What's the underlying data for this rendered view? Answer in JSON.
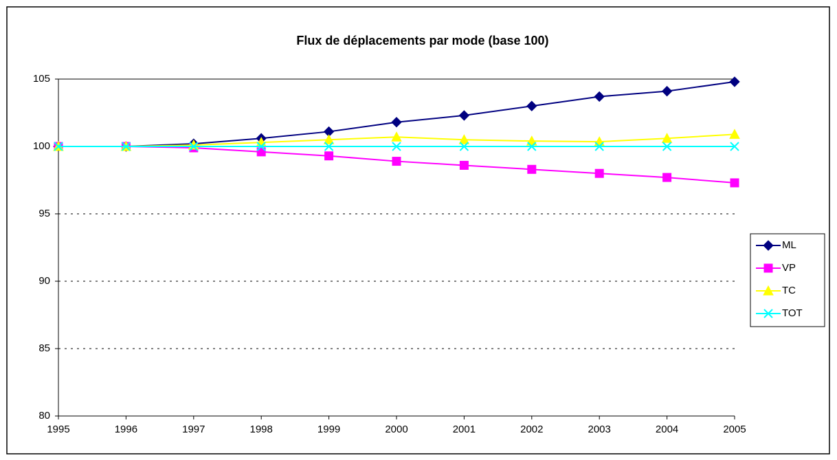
{
  "chart_data": {
    "type": "line",
    "title": "Flux de déplacements par mode (base 100)",
    "categories": [
      "1995",
      "1996",
      "1997",
      "1998",
      "1999",
      "2000",
      "2001",
      "2002",
      "2003",
      "2004",
      "2005"
    ],
    "series": [
      {
        "name": "ML",
        "color": "#000080",
        "marker": "diamond",
        "values": [
          100,
          100,
          100.2,
          100.6,
          101.1,
          101.8,
          102.3,
          103.0,
          103.7,
          104.1,
          104.8
        ]
      },
      {
        "name": "VP",
        "color": "#ff00ff",
        "marker": "square",
        "values": [
          100,
          100,
          99.9,
          99.6,
          99.3,
          98.9,
          98.6,
          98.3,
          98.0,
          97.7,
          97.3
        ]
      },
      {
        "name": "TC",
        "color": "#ffff00",
        "marker": "triangle",
        "values": [
          100,
          100,
          100.1,
          100.3,
          100.5,
          100.7,
          100.5,
          100.4,
          100.35,
          100.6,
          100.9
        ]
      },
      {
        "name": "TOT",
        "color": "#00ffff",
        "marker": "x",
        "values": [
          100,
          100,
          100,
          100,
          100,
          100,
          100,
          100,
          100,
          100,
          100
        ]
      }
    ],
    "ylim": [
      80,
      105
    ],
    "yticks": [
      80,
      85,
      90,
      95,
      100,
      105
    ],
    "grid": true,
    "legend": "right"
  }
}
